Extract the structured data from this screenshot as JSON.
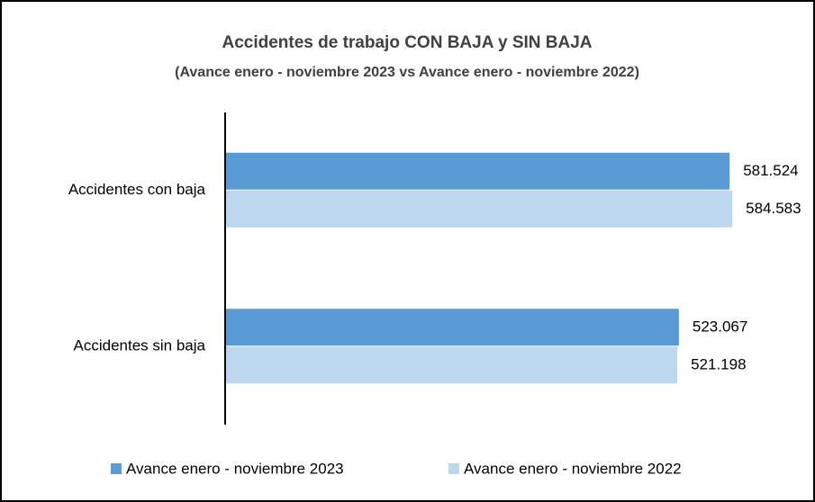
{
  "chart_data": {
    "type": "barh",
    "title": "Accidentes de trabajo CON BAJA y SIN BAJA",
    "subtitle": "(Avance enero - noviembre 2023 vs Avance enero - noviembre 2022)",
    "categories": [
      "Accidentes con baja",
      "Accidentes sin baja"
    ],
    "series": [
      {
        "name": "Avance enero - noviembre 2023",
        "color": "#5b9bd5",
        "values": [
          581524,
          523067
        ],
        "value_labels": [
          "581.524",
          "523.067"
        ]
      },
      {
        "name": "Avance enero - noviembre 2022",
        "color": "#bdd7ee",
        "values": [
          584583,
          521198
        ],
        "value_labels": [
          "584.583",
          "521.198"
        ]
      }
    ],
    "xlim": [
      0,
      600000
    ],
    "legend": "bottom"
  }
}
